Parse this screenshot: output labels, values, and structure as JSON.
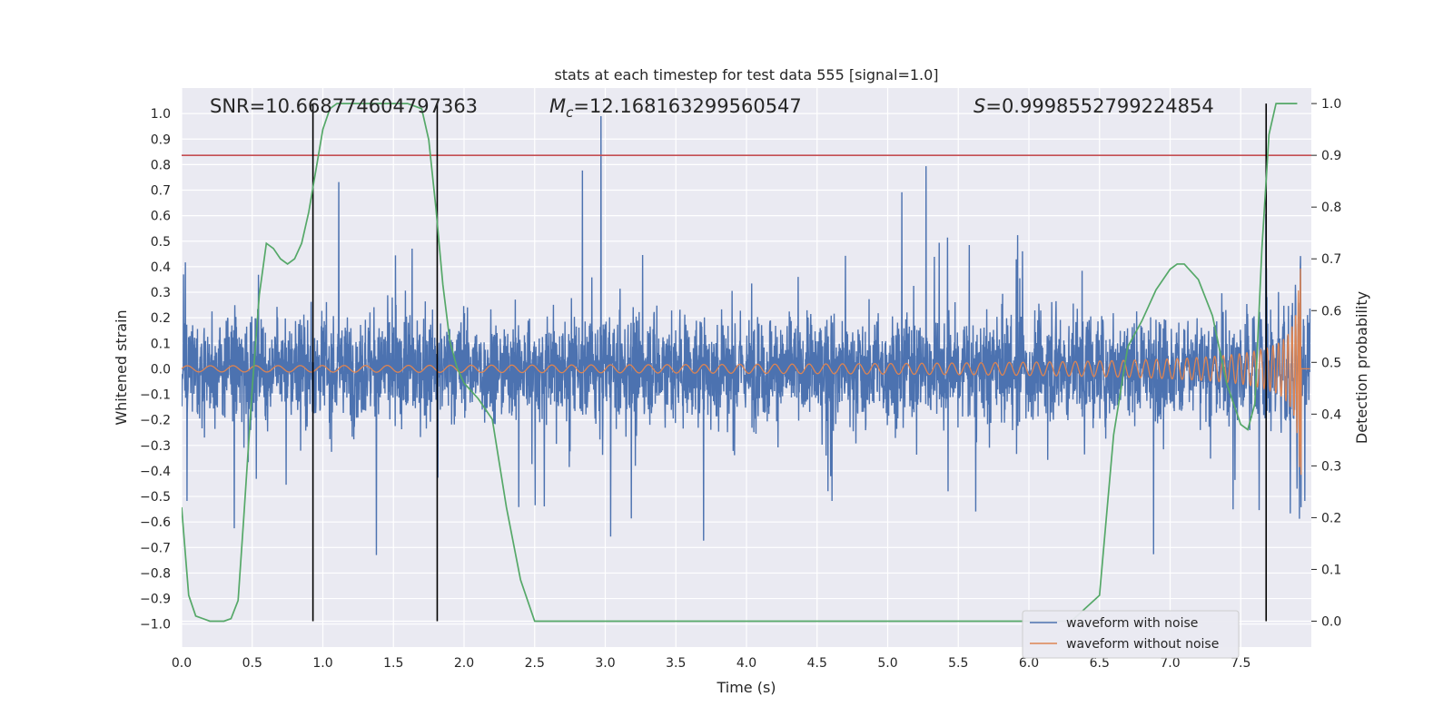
{
  "chart_data": {
    "type": "line",
    "title": "stats at each timestep for test data 555 [signal=1.0]",
    "xlabel": "Time (s)",
    "ylabel_left": "Whitened strain",
    "ylabel_right": "Detection probability",
    "xlim": [
      0.0,
      8.0
    ],
    "ylim_left": [
      -1.09,
      1.1
    ],
    "ylim_right": [
      -0.05,
      1.03
    ],
    "x_ticks": [
      "0.0",
      "0.5",
      "1.0",
      "1.5",
      "2.0",
      "2.5",
      "3.0",
      "3.5",
      "4.0",
      "4.5",
      "5.0",
      "5.5",
      "6.0",
      "6.5",
      "7.0",
      "7.5"
    ],
    "y_ticks_left": [
      "1.0",
      "0.9",
      "0.8",
      "0.7",
      "0.6",
      "0.5",
      "0.4",
      "0.3",
      "0.2",
      "0.1",
      "0.0",
      "−0.1",
      "−0.2",
      "−0.3",
      "−0.4",
      "−0.5",
      "−0.6",
      "−0.7",
      "−0.8",
      "−0.9",
      "−1.0"
    ],
    "y_ticks_right": [
      "1.0",
      "0.9",
      "0.8",
      "0.7",
      "0.6",
      "0.5",
      "0.4",
      "0.3",
      "0.2",
      "0.1",
      "0.0"
    ],
    "annotations": {
      "snr": "SNR=10.668774604797363",
      "mc_symbol": "M",
      "mc_sub": "c",
      "mc_value": "=12.168163299560547",
      "s_symbol": "S",
      "s_value": "=0.9998552799224854"
    },
    "threshold_right": 0.9,
    "threshold_color": "#c44e52",
    "vertical_lines_x": [
      0.93,
      1.81,
      7.68
    ],
    "series": [
      {
        "name": "waveform with noise",
        "color": "#4c72b0",
        "style": "dense noise, approx amplitude band ±0.35 with spikes to ±1.0"
      },
      {
        "name": "waveform without noise",
        "color": "#dd8452",
        "style": "chirp with increasing frequency and amplitude up to ~0.6 at t≈7.9"
      },
      {
        "name": "Detection probability",
        "color": "#55a868",
        "axis": "right",
        "x": [
          0.0,
          0.05,
          0.1,
          0.15,
          0.2,
          0.3,
          0.35,
          0.4,
          0.44,
          0.5,
          0.55,
          0.6,
          0.65,
          0.7,
          0.75,
          0.8,
          0.85,
          0.9,
          0.95,
          1.0,
          1.05,
          1.1,
          1.2,
          1.4,
          1.6,
          1.7,
          1.75,
          1.8,
          1.85,
          1.9,
          1.95,
          2.0,
          2.1,
          2.2,
          2.3,
          2.4,
          2.5,
          3.0,
          4.0,
          5.0,
          6.0,
          6.3,
          6.5,
          6.6,
          6.7,
          6.8,
          6.9,
          7.0,
          7.05,
          7.1,
          7.2,
          7.3,
          7.4,
          7.5,
          7.55,
          7.6,
          7.65,
          7.7,
          7.75,
          7.8,
          7.9
        ],
        "values": [
          0.22,
          0.05,
          0.01,
          0.005,
          0.0,
          0.0,
          0.005,
          0.04,
          0.2,
          0.45,
          0.63,
          0.73,
          0.72,
          0.7,
          0.69,
          0.7,
          0.73,
          0.79,
          0.87,
          0.95,
          0.99,
          1.0,
          1.0,
          1.0,
          1.0,
          0.99,
          0.93,
          0.8,
          0.65,
          0.54,
          0.49,
          0.46,
          0.43,
          0.39,
          0.22,
          0.08,
          0.0,
          0.0,
          0.0,
          0.0,
          0.0,
          0.0,
          0.05,
          0.36,
          0.53,
          0.58,
          0.64,
          0.68,
          0.69,
          0.69,
          0.66,
          0.59,
          0.46,
          0.38,
          0.37,
          0.42,
          0.72,
          0.94,
          1.0,
          1.0,
          1.0
        ]
      }
    ],
    "legend_position": "lower right",
    "grid": true
  }
}
